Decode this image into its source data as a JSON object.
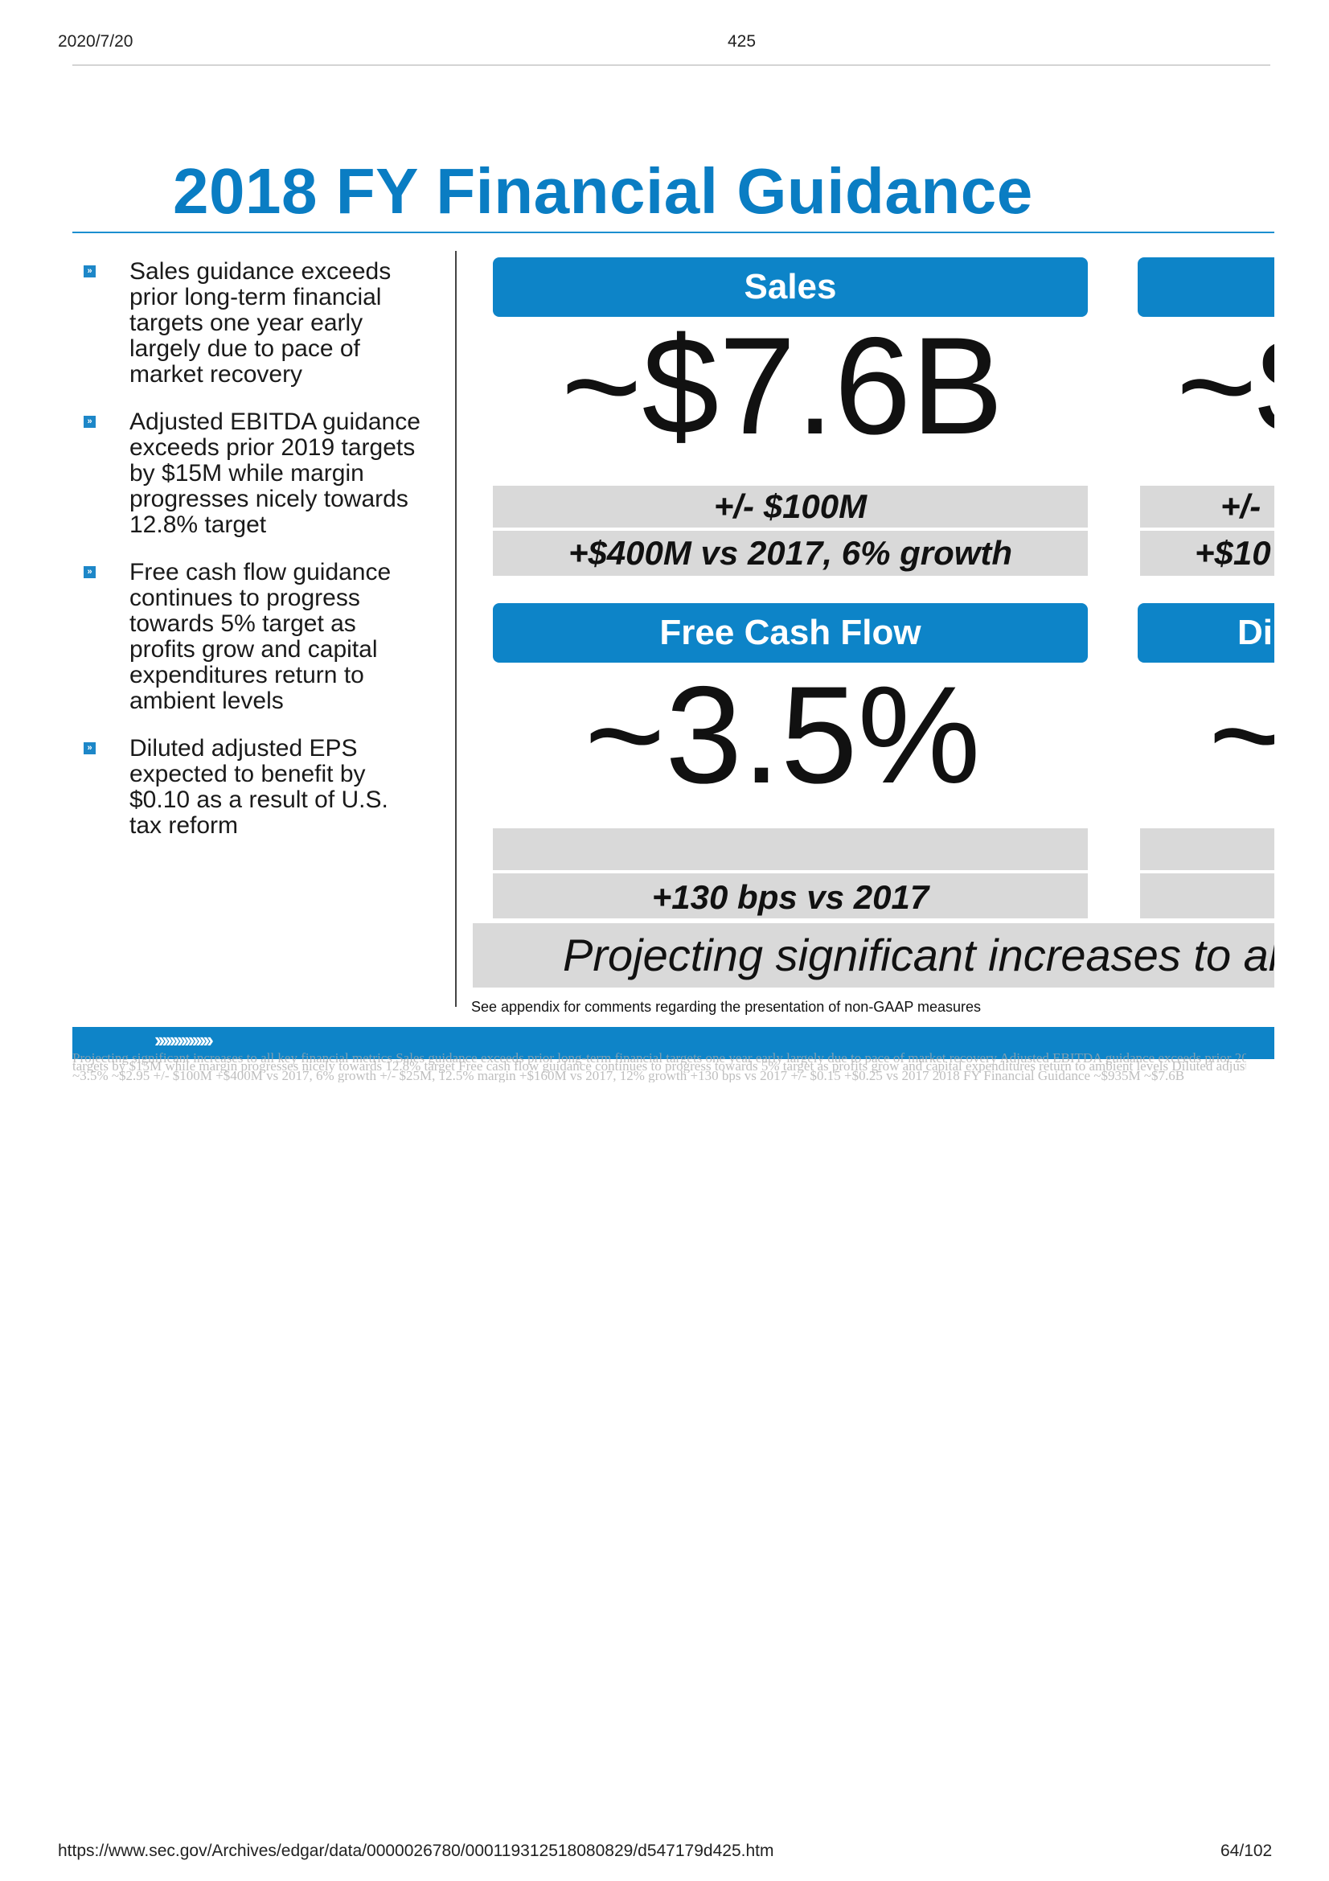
{
  "header": {
    "date": "2020/7/20",
    "doc_number": "425"
  },
  "slide": {
    "title": "2018 FY Financial Guidance",
    "bullet_mark": "»",
    "bullets": [
      "Sales guidance exceeds prior long-term financial targets one year early largely due to pace of market recovery",
      "Adjusted EBITDA guidance exceeds prior 2019 targets by $15M while margin progresses nicely towards 12.8% target",
      "Free cash flow guidance continues to progress towards 5% target as profits grow and capital expenditures return to ambient levels",
      "Diluted adjusted EPS expected to benefit by $0.10 as a result of U.S. tax reform"
    ],
    "tiles": {
      "sales": {
        "header": "Sales",
        "value": "~$7.6B",
        "range": "+/- $100M",
        "change": "+$400M vs 2017, 6% growth"
      },
      "fcf": {
        "header": "Free Cash Flow",
        "value": "~3.5%",
        "range": "",
        "change": "+130 bps vs 2017"
      },
      "right_top": {
        "header": "",
        "value": "~$",
        "range": "+/-",
        "change": "+$10"
      },
      "right_bottom": {
        "header": "Di",
        "value": "~"
      }
    },
    "projection": "Projecting significant increases to al",
    "note": "See appendix for comments regarding the presentation of non-GAAP measures",
    "footer_chevrons": "›››››››››››››››"
  },
  "ghost_text": [
    "Projecting significant increases to all key financial metrics Sales guidance exceeds prior long-term financial targets one year early largely due to pace of market recovery Adjusted EBITDA guidance exceeds prior 2019",
    "targets by $15M while margin progresses nicely towards 12.8% target Free cash flow guidance continues to progress towards 5% target as profits grow and capital expenditures return to ambient levels Diluted adjusted EPS",
    "~3.5% ~$2.95 +/- $100M +$400M vs 2017, 6% growth +/- $25M, 12.5% margin +$160M vs 2017, 12% growth +130 bps vs 2017 +/- $0.15 +$0.25 vs 2017 2018 FY Financial Guidance ~$935M ~$7.6B"
  ],
  "footer": {
    "url": "https://www.sec.gov/Archives/edgar/data/0000026780/000119312518080829/d547179d425.htm",
    "page": "64/102"
  }
}
